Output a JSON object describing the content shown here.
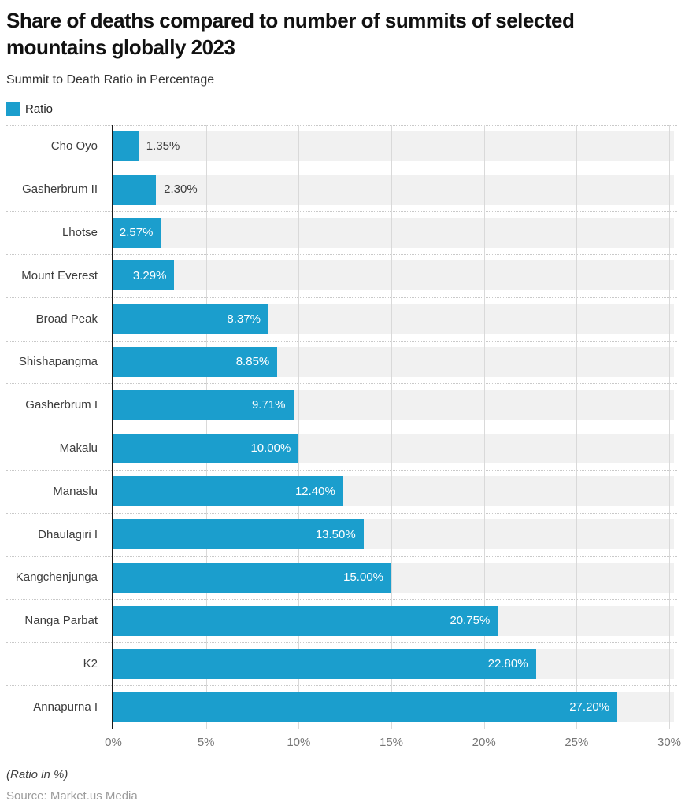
{
  "header": {
    "title": "Share of deaths compared to number of summits of selected mountains globally 2023",
    "subtitle": "Summit to Death Ratio in Percentage"
  },
  "legend": {
    "label": "Ratio",
    "color": "#1b9ecd"
  },
  "footer": {
    "footnote": "(Ratio in %)",
    "source": "Source: Market.us Media"
  },
  "chart_data": {
    "type": "bar",
    "orientation": "horizontal",
    "title": "Share of deaths compared to number of summits of selected mountains globally 2023",
    "subtitle": "Summit to Death Ratio in Percentage",
    "series_name": "Ratio",
    "categories": [
      "Cho Oyo",
      "Gasherbrum II",
      "Lhotse",
      "Mount Everest",
      "Broad Peak",
      "Shishapangma",
      "Gasherbrum I",
      "Makalu",
      "Manaslu",
      "Dhaulagiri I",
      "Kangchenjunga",
      "Nanga Parbat",
      "K2",
      "Annapurna I"
    ],
    "values": [
      1.35,
      2.3,
      2.57,
      3.29,
      8.37,
      8.85,
      9.71,
      10.0,
      12.4,
      13.5,
      15.0,
      20.75,
      22.8,
      27.2
    ],
    "value_labels": [
      "1.35%",
      "2.30%",
      "2.57%",
      "3.29%",
      "8.37%",
      "8.85%",
      "9.71%",
      "10.00%",
      "12.40%",
      "13.50%",
      "15.00%",
      "20.75%",
      "22.80%",
      "27.20%"
    ],
    "xlabel": "Ratio in %",
    "ylabel": "",
    "xlim": [
      0,
      30
    ],
    "x_ticks": [
      "0%",
      "5%",
      "10%",
      "15%",
      "20%",
      "25%",
      "30%"
    ],
    "x_tick_values": [
      0,
      5,
      10,
      15,
      20,
      25,
      30
    ],
    "grid": true,
    "legend_position": "top-left",
    "bar_color": "#1b9ecd",
    "track_color": "#f1f1f1",
    "gridline_color": "#d9d9d9"
  }
}
